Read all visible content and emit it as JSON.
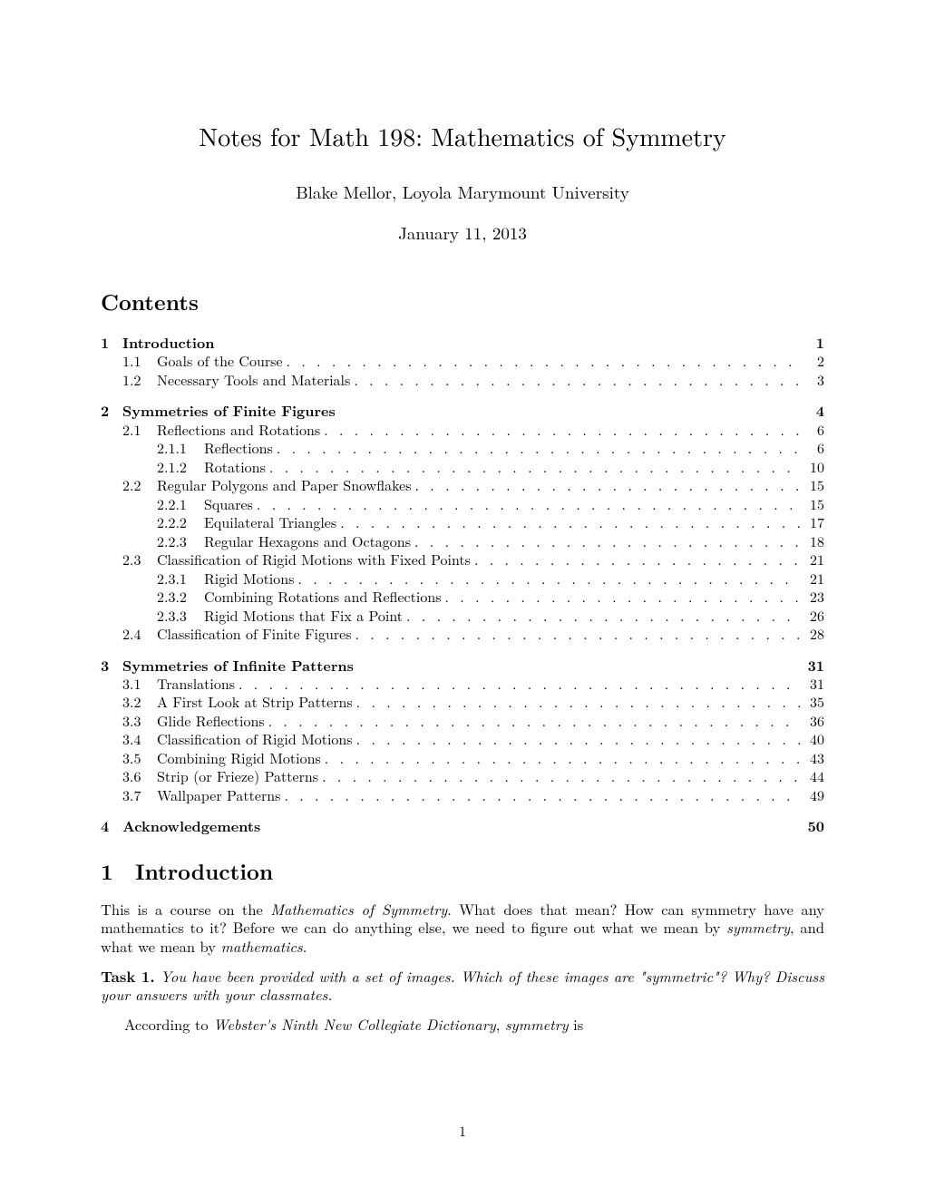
{
  "title": "Notes for Math 198: Mathematics of Symmetry",
  "author": "Blake Mellor, Loyola Marymount University",
  "date": "January 11, 2013",
  "contents_heading": "Contents",
  "toc": {
    "s1": {
      "num": "1",
      "title": "Introduction",
      "page": "1"
    },
    "s1_1": {
      "num": "1.1",
      "title": "Goals of the Course",
      "page": "2"
    },
    "s1_2": {
      "num": "1.2",
      "title": "Necessary Tools and Materials",
      "page": "3"
    },
    "s2": {
      "num": "2",
      "title": "Symmetries of Finite Figures",
      "page": "4"
    },
    "s2_1": {
      "num": "2.1",
      "title": "Reflections and Rotations",
      "page": "6"
    },
    "s2_1_1": {
      "num": "2.1.1",
      "title": "Reflections",
      "page": "6"
    },
    "s2_1_2": {
      "num": "2.1.2",
      "title": "Rotations",
      "page": "10"
    },
    "s2_2": {
      "num": "2.2",
      "title": "Regular Polygons and Paper Snowflakes",
      "page": "15"
    },
    "s2_2_1": {
      "num": "2.2.1",
      "title": "Squares",
      "page": "15"
    },
    "s2_2_2": {
      "num": "2.2.2",
      "title": "Equilateral Triangles",
      "page": "17"
    },
    "s2_2_3": {
      "num": "2.2.3",
      "title": "Regular Hexagons and Octagons",
      "page": "18"
    },
    "s2_3": {
      "num": "2.3",
      "title": "Classification of Rigid Motions with Fixed Points",
      "page": "21"
    },
    "s2_3_1": {
      "num": "2.3.1",
      "title": "Rigid Motions",
      "page": "21"
    },
    "s2_3_2": {
      "num": "2.3.2",
      "title": "Combining Rotations and Reflections",
      "page": "23"
    },
    "s2_3_3": {
      "num": "2.3.3",
      "title": "Rigid Motions that Fix a Point",
      "page": "26"
    },
    "s2_4": {
      "num": "2.4",
      "title": "Classification of Finite Figures",
      "page": "28"
    },
    "s3": {
      "num": "3",
      "title": "Symmetries of Infinite Patterns",
      "page": "31"
    },
    "s3_1": {
      "num": "3.1",
      "title": "Translations",
      "page": "31"
    },
    "s3_2": {
      "num": "3.2",
      "title": "A First Look at Strip Patterns",
      "page": "35"
    },
    "s3_3": {
      "num": "3.3",
      "title": "Glide Reflections",
      "page": "36"
    },
    "s3_4": {
      "num": "3.4",
      "title": "Classification of Rigid Motions",
      "page": "40"
    },
    "s3_5": {
      "num": "3.5",
      "title": "Combining Rigid Motions",
      "page": "43"
    },
    "s3_6": {
      "num": "3.6",
      "title": "Strip (or Frieze) Patterns",
      "page": "44"
    },
    "s3_7": {
      "num": "3.7",
      "title": "Wallpaper Patterns",
      "page": "49"
    },
    "s4": {
      "num": "4",
      "title": "Acknowledgements",
      "page": "50"
    }
  },
  "section1": {
    "num": "1",
    "title": "Introduction"
  },
  "body": {
    "p1_a": "This is a course on the ",
    "p1_b": "Mathematics of Symmetry",
    "p1_c": ". What does that mean? How can symmetry have any mathematics to it? Before we can do anything else, we need to figure out what we mean by ",
    "p1_d": "symmetry",
    "p1_e": ", and what we mean by ",
    "p1_f": "mathematics",
    "p1_g": "."
  },
  "task1": {
    "label": "Task 1.",
    "text": " You have been provided with a set of images. Which of these images are \"symmetric\"? Why? Discuss your answers with your classmates."
  },
  "p2": {
    "a": "According to ",
    "b": "Webster's Ninth New Collegiate Dictionary",
    "c": ", ",
    "d": "symmetry",
    "e": " is"
  },
  "page_number": "1"
}
